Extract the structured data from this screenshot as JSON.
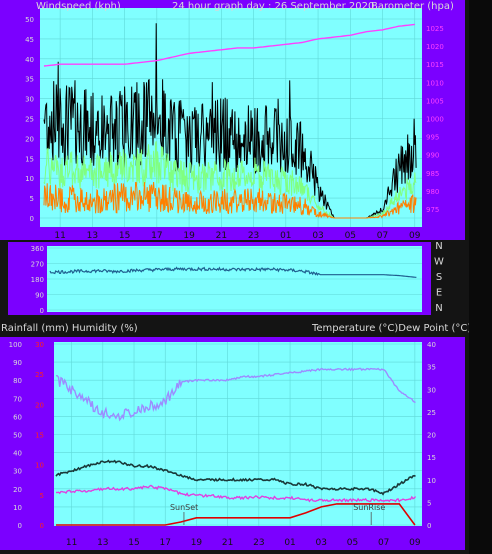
{
  "colors": {
    "frame": "#7b00ff",
    "plot_bg": "#80ffff",
    "bg": "#141414",
    "pressure": "#ff40ff",
    "gust": "#000000",
    "wind": "#80ff80",
    "wind_low": "#ff8000",
    "direction": "#1f5f8f",
    "humidity": "#9c8cff",
    "temperature": "#1a3a3a",
    "dewpoint": "#e040e0",
    "rainfall": "#e00000",
    "red_axis": "#ff2020"
  },
  "header": {
    "left": "Windspeed (kph)",
    "center": "24 hour graph day : 26 September 2020",
    "right": "Barometer (hpa)"
  },
  "bottom_header": {
    "left": "Rainfall (mm)  Humidity (%)",
    "right": "Temperature (°C)Dew Point (°C)"
  },
  "x_ticks": [
    "11",
    "13",
    "15",
    "17",
    "19",
    "21",
    "23",
    "01",
    "03",
    "05",
    "07",
    "09"
  ],
  "chart_data": [
    {
      "type": "line",
      "title": "24 hour graph day : 26 September 2020",
      "ylabel_left": "Windspeed (kph)",
      "ylabel_right": "Barometer (hpa)",
      "x_hours": [
        10,
        11,
        12,
        13,
        14,
        15,
        16,
        17,
        18,
        19,
        20,
        21,
        22,
        23,
        24,
        25,
        26,
        27,
        28,
        29,
        30,
        31,
        32,
        33
      ],
      "left_ticks": [
        "50",
        "45",
        "40",
        "35",
        "30",
        "25",
        "20",
        "15",
        "10",
        "5",
        "0"
      ],
      "right_ticks": [
        "1025",
        "1020",
        "1015",
        "1010",
        "1005",
        "1000",
        "995",
        "990",
        "985",
        "980",
        "975"
      ],
      "ylim_left": [
        0,
        50
      ],
      "ylim_right": [
        972.5,
        1027.5
      ],
      "series": [
        {
          "name": "Barometer (hpa)",
          "values": [
            1014.5,
            1015,
            1015,
            1015,
            1015,
            1015,
            1015.5,
            1016,
            1017,
            1018,
            1018.5,
            1019,
            1019.5,
            1019.5,
            1020,
            1020.5,
            1021,
            1022,
            1022.5,
            1023,
            1024,
            1024.5,
            1025.5,
            1026
          ]
        },
        {
          "name": "Windspeed (kph)",
          "values": [
            13,
            12,
            12,
            11,
            12,
            13,
            13,
            14,
            11,
            10,
            10,
            11,
            10,
            11,
            10,
            9,
            8,
            3,
            0,
            0,
            0,
            1,
            6,
            9
          ]
        },
        {
          "name": "Gust (kph)",
          "values": [
            25,
            24,
            24,
            22,
            22,
            23,
            24,
            26,
            21,
            20,
            20,
            21,
            21,
            20,
            20,
            18,
            17,
            8,
            0,
            0,
            0,
            2,
            12,
            18
          ]
        }
      ]
    },
    {
      "type": "line",
      "title": "",
      "left_ticks": [
        "360",
        "270",
        "180",
        "90",
        "0"
      ],
      "right_labels": [
        "N",
        "W",
        "S",
        "E",
        "N"
      ],
      "ylim": [
        0,
        360
      ],
      "x_hours": [
        10,
        11,
        12,
        13,
        14,
        15,
        16,
        17,
        18,
        19,
        20,
        21,
        22,
        23,
        24,
        25,
        26,
        27,
        28,
        29,
        30,
        31,
        32,
        33
      ],
      "series": [
        {
          "name": "Wind direction",
          "values": [
            220,
            222,
            225,
            228,
            224,
            228,
            232,
            235,
            238,
            238,
            238,
            236,
            235,
            236,
            236,
            232,
            225,
            205,
            205,
            205,
            205,
            205,
            200,
            190
          ]
        }
      ]
    },
    {
      "type": "line",
      "title": "",
      "ylabel_left": "Rainfall (mm)  Humidity (%)",
      "ylabel_right": "Temperature (°C)Dew Point (°C)",
      "left_ticks": [
        "100",
        "90",
        "80",
        "70",
        "60",
        "50",
        "40",
        "30",
        "20",
        "10",
        "0"
      ],
      "rain_ticks": [
        "30",
        "25",
        "20",
        "15",
        "10",
        "5",
        "0"
      ],
      "right_ticks": [
        "40",
        "35",
        "30",
        "25",
        "20",
        "15",
        "10",
        "5",
        "0"
      ],
      "ylim_left": [
        0,
        100
      ],
      "ylim_rain": [
        0,
        30
      ],
      "ylim_right": [
        0,
        40
      ],
      "annotations": [
        "SunSet",
        "SunRise"
      ],
      "x_hours": [
        10,
        11,
        12,
        13,
        14,
        15,
        16,
        17,
        18,
        19,
        20,
        21,
        22,
        23,
        24,
        25,
        26,
        27,
        28,
        29,
        30,
        31,
        32,
        33
      ],
      "series": [
        {
          "name": "Humidity (%)",
          "values": [
            80,
            75,
            68,
            62,
            60,
            63,
            66,
            68,
            79,
            80,
            80,
            80,
            82,
            82,
            83,
            84,
            85,
            86,
            86,
            86,
            86,
            86,
            74,
            68
          ]
        },
        {
          "name": "Temperature (°C)",
          "values": [
            11,
            12,
            13,
            14,
            14,
            13,
            13,
            12,
            11,
            10,
            10,
            10,
            10,
            10,
            10,
            9,
            9,
            8,
            8,
            8,
            8,
            7,
            9,
            11
          ]
        },
        {
          "name": "Dew Point (°C)",
          "values": [
            7,
            7.5,
            7.5,
            8,
            8,
            8,
            8.5,
            8,
            7,
            6.5,
            6.5,
            6,
            6,
            6.2,
            6,
            6,
            5.5,
            5.5,
            5.5,
            5.5,
            5.5,
            5.5,
            5.5,
            6
          ]
        },
        {
          "name": "Rainfall (mm)",
          "values": [
            0,
            0,
            0,
            0,
            0,
            0,
            0,
            0,
            0.5,
            1.2,
            1.2,
            1.2,
            1.2,
            1.2,
            1.2,
            1.2,
            2,
            3,
            3.5,
            3.5,
            3.5,
            3.5,
            3.5,
            0
          ]
        }
      ]
    }
  ]
}
